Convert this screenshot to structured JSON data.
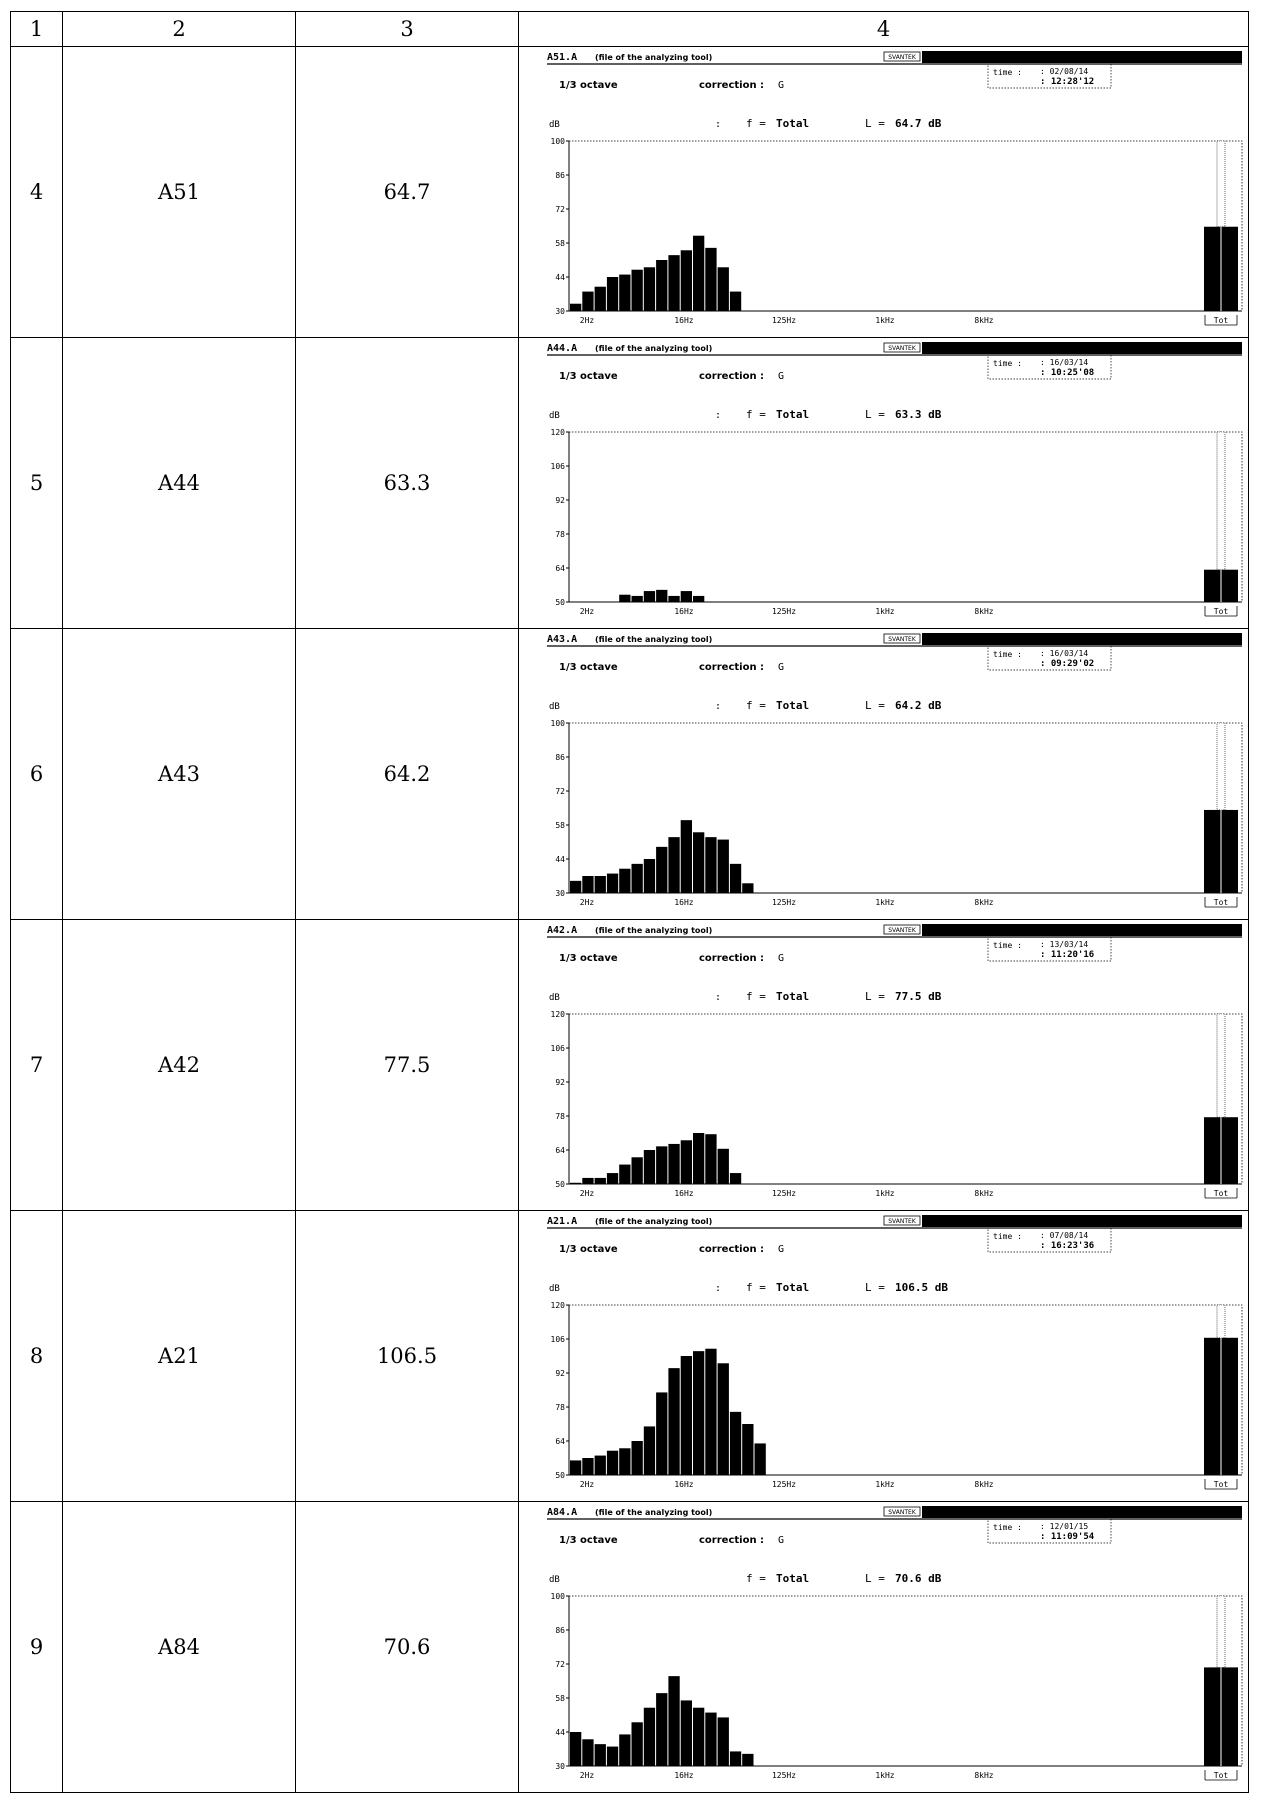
{
  "header": [
    "1",
    "2",
    "3",
    "4"
  ],
  "common": {
    "file_suffix": "(file of the analyzing tool)",
    "brand": "SVANTEK",
    "mode": "1/3 octave",
    "correction_label": "correction :",
    "correction_value": "G",
    "time_label": "time :",
    "unit": "dB",
    "f_label": "f = ",
    "f_value": "Total",
    "L_label": "L = ",
    "x_ticks": [
      "2Hz",
      "16Hz",
      "125Hz",
      "1kHz",
      "8kHz",
      "Tot"
    ]
  },
  "rows": [
    {
      "num": "4",
      "code": "A51",
      "value": "64.7",
      "file": "A51.A",
      "date": ": 02/08/14",
      "time": ": 12:28'12",
      "L_text": "64.7 dB",
      "show_colon": true
    },
    {
      "num": "5",
      "code": "A44",
      "value": "63.3",
      "file": "A44.A",
      "date": ": 16/03/14",
      "time": ": 10:25'08",
      "L_text": "63.3 dB",
      "show_colon": true
    },
    {
      "num": "6",
      "code": "A43",
      "value": "64.2",
      "file": "A43.A",
      "date": ": 16/03/14",
      "time": ": 09:29'02",
      "L_text": "64.2 dB",
      "show_colon": true
    },
    {
      "num": "7",
      "code": "A42",
      "value": "77.5",
      "file": "A42.A",
      "date": ": 13/03/14",
      "time": ": 11:20'16",
      "L_text": "77.5 dB",
      "show_colon": true
    },
    {
      "num": "8",
      "code": "A21",
      "value": "106.5",
      "file": "A21.A",
      "date": ": 07/08/14",
      "time": ": 16:23'36",
      "L_text": "106.5 dB",
      "show_colon": true
    },
    {
      "num": "9",
      "code": "A84",
      "value": "70.6",
      "file": "A84.A",
      "date": ": 12/01/15",
      "time": ": 11:09'54",
      "L_text": "70.6 dB",
      "show_colon": false
    }
  ],
  "chart_data": [
    {
      "type": "bar",
      "ylabel": "dB",
      "ylim": [
        30,
        100
      ],
      "yticks": [
        30,
        44,
        58,
        72,
        86,
        100
      ],
      "x_start_label": "2Hz",
      "band_values": [
        33,
        38,
        40,
        44,
        45,
        47,
        48,
        51,
        53,
        55,
        61,
        56,
        48,
        38
      ],
      "total": 64.7
    },
    {
      "type": "bar",
      "ylabel": "dB",
      "ylim": [
        50,
        120
      ],
      "yticks": [
        50,
        64,
        78,
        92,
        106,
        120
      ],
      "x_start_label": "2Hz",
      "band_values": [
        49,
        49,
        49,
        49,
        53,
        52.5,
        54.5,
        55,
        52.5,
        54.5,
        52.5
      ],
      "total": 63.3
    },
    {
      "type": "bar",
      "ylabel": "dB",
      "ylim": [
        30,
        100
      ],
      "yticks": [
        30,
        44,
        58,
        72,
        86,
        100
      ],
      "x_start_label": "2Hz",
      "band_values": [
        35,
        37,
        37,
        38,
        40,
        42,
        44,
        49,
        53,
        60,
        55,
        53,
        52,
        42,
        34
      ],
      "total": 64.2
    },
    {
      "type": "bar",
      "ylabel": "dB",
      "ylim": [
        50,
        120
      ],
      "yticks": [
        50,
        64,
        78,
        92,
        106,
        120
      ],
      "x_start_label": "2Hz",
      "band_values": [
        50.5,
        52.5,
        52.5,
        54.5,
        58,
        61,
        64,
        65.5,
        66.5,
        68,
        71,
        70.5,
        64.5,
        54.5
      ],
      "total": 77.5
    },
    {
      "type": "bar",
      "ylabel": "dB",
      "ylim": [
        50,
        120
      ],
      "yticks": [
        50,
        64,
        78,
        92,
        106,
        120
      ],
      "x_start_label": "2Hz",
      "band_values": [
        56,
        57,
        58,
        60,
        61,
        64,
        70,
        84,
        94,
        99,
        101,
        102,
        96,
        76,
        71,
        63
      ],
      "total": 106.5
    },
    {
      "type": "bar",
      "ylabel": "dB",
      "ylim": [
        30,
        100
      ],
      "yticks": [
        30,
        44,
        58,
        72,
        86,
        100
      ],
      "x_start_label": "2Hz",
      "band_values": [
        44,
        41,
        39,
        38,
        43,
        48,
        54,
        60,
        67,
        57,
        54,
        52,
        50,
        36,
        35
      ],
      "total": 70.6
    }
  ]
}
